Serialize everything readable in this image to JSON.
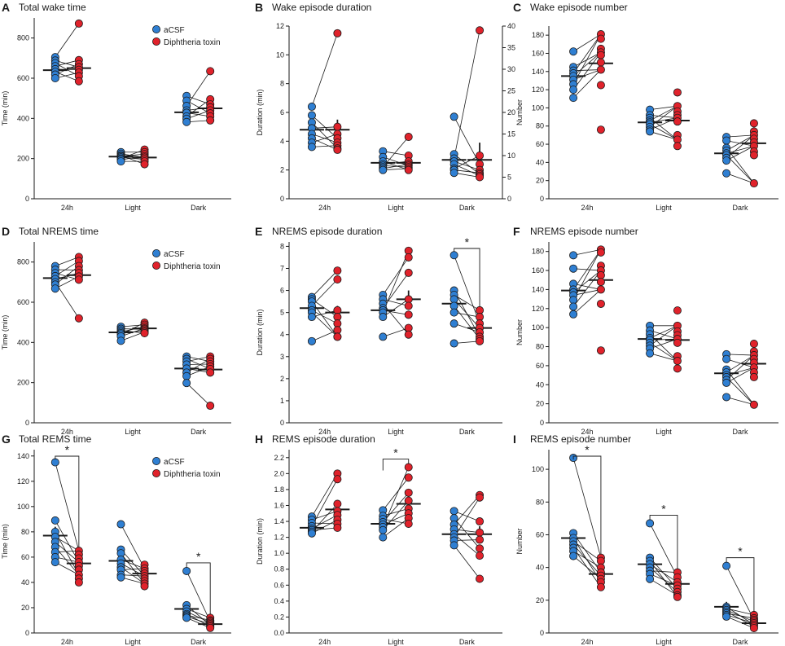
{
  "colors": {
    "acsf": "#2f7fd2",
    "dt": "#e0222b",
    "stroke": "#1a1a1a"
  },
  "legend": {
    "acsf_label": "aCSF",
    "dt_label": "Diphtheria toxin",
    "panels": [
      "A",
      "D",
      "G"
    ]
  },
  "chart_data": [
    {
      "id": "A",
      "letter": "A",
      "title": "Total wake time",
      "type": "scatter",
      "ylabel": "Time (min)",
      "ylim": [
        0,
        900
      ],
      "yticks": [
        0,
        200,
        400,
        600,
        800
      ],
      "categories": [
        "24h",
        "Light",
        "Dark"
      ],
      "series": [
        {
          "name": "aCSF",
          "means": [
            640,
            210,
            430
          ],
          "points": [
            [
              705,
              688,
              675,
              660,
              645,
              632,
              618,
              600
            ],
            [
              232,
              224,
              216,
              212,
              206,
              200,
              194,
              186
            ],
            [
              512,
              488,
              462,
              440,
              428,
              410,
              398,
              382
            ]
          ]
        },
        {
          "name": "Diphtheria toxin",
          "means": [
            650,
            205,
            450
          ],
          "points": [
            [
              872,
              690,
              670,
              655,
              642,
              628,
              610,
              585
            ],
            [
              245,
              232,
              222,
              212,
              205,
              196,
              186,
              172
            ],
            [
              635,
              495,
              470,
              455,
              440,
              425,
              410,
              390
            ]
          ]
        }
      ]
    },
    {
      "id": "B",
      "letter": "B",
      "title": "Wake episode duration",
      "type": "scatter",
      "ylabel": "Duration (min)",
      "ylim": [
        0,
        12
      ],
      "yticks": [
        0,
        2,
        4,
        6,
        8,
        10,
        12
      ],
      "y2lim": [
        0,
        40
      ],
      "y2ticks": [
        0,
        5,
        10,
        15,
        20,
        25,
        30,
        35,
        40
      ],
      "categories": [
        "24h",
        "Light",
        "Dark"
      ],
      "series": [
        {
          "name": "aCSF",
          "means": [
            4.8,
            2.5,
            2.7
          ],
          "sem": [
            0.4,
            0.2,
            0.4
          ],
          "points": [
            [
              6.4,
              5.8,
              5.3,
              4.9,
              4.5,
              4.2,
              3.9,
              3.6
            ],
            [
              3.3,
              2.9,
              2.6,
              2.4,
              2.3,
              2.2,
              2.1,
              2.0
            ],
            [
              5.7,
              3.1,
              2.8,
              2.6,
              2.4,
              2.1,
              2.0,
              1.8
            ]
          ]
        },
        {
          "name": "Diphtheria toxin",
          "means": [
            4.8,
            2.5,
            2.7
          ],
          "sem": [
            0.7,
            0.2,
            1.2
          ],
          "points": [
            [
              11.5,
              5.0,
              4.5,
              4.2,
              3.9,
              3.7,
              3.5,
              3.4
            ],
            [
              4.3,
              3.0,
              2.6,
              2.4,
              2.3,
              2.2,
              2.1,
              2.0
            ],
            [
              11.7,
              3.0,
              2.4,
              2.0,
              1.8,
              1.7,
              1.6,
              1.5
            ]
          ]
        }
      ]
    },
    {
      "id": "C",
      "letter": "C",
      "title": "Wake episode number",
      "type": "scatter",
      "ylabel": "Number",
      "ylim": [
        0,
        190
      ],
      "yticks": [
        0,
        20,
        40,
        60,
        80,
        100,
        120,
        140,
        160,
        180
      ],
      "categories": [
        "24h",
        "Light",
        "Dark"
      ],
      "series": [
        {
          "name": "aCSF",
          "means": [
            135,
            84,
            50
          ],
          "points": [
            [
              162,
              145,
              141,
              138,
              135,
              131,
              126,
              120,
              111
            ],
            [
              98,
              92,
              89,
              86,
              84,
              82,
              79,
              76,
              74
            ],
            [
              68,
              64,
              56,
              53,
              50,
              48,
              45,
              42,
              28
            ]
          ]
        },
        {
          "name": "Diphtheria toxin",
          "means": [
            149,
            86,
            61
          ],
          "points": [
            [
              181,
              176,
              165,
              161,
              158,
              150,
              142,
              125,
              76
            ],
            [
              117,
              102,
              96,
              92,
              89,
              85,
              70,
              65,
              58
            ],
            [
              83,
              74,
              70,
              66,
              62,
              58,
              52,
              48,
              17
            ]
          ]
        }
      ]
    },
    {
      "id": "D",
      "letter": "D",
      "title": "Total NREMS time",
      "type": "scatter",
      "ylabel": "Time (min)",
      "ylim": [
        0,
        900
      ],
      "yticks": [
        0,
        200,
        400,
        600,
        800
      ],
      "categories": [
        "24h",
        "Light",
        "Dark"
      ],
      "series": [
        {
          "name": "aCSF",
          "means": [
            720,
            450,
            270
          ],
          "points": [
            [
              780,
              762,
              745,
              730,
              715,
              700,
              688,
              668
            ],
            [
              478,
              468,
              460,
              452,
              446,
              440,
              430,
              408
            ],
            [
              330,
              318,
              305,
              290,
              270,
              250,
              232,
              198
            ]
          ]
        },
        {
          "name": "Diphtheria toxin",
          "means": [
            735,
            470,
            265
          ],
          "points": [
            [
              825,
              805,
              780,
              760,
              745,
              728,
              712,
              520
            ],
            [
              498,
              488,
              478,
              470,
              465,
              458,
              452,
              446
            ],
            [
              330,
              318,
              305,
              292,
              280,
              268,
              250,
              85
            ]
          ]
        }
      ]
    },
    {
      "id": "E",
      "letter": "E",
      "title": "NREMS episode duration",
      "type": "scatter",
      "ylabel": "Duration (min)",
      "ylim": [
        0,
        8.2
      ],
      "yticks": [
        0,
        1,
        2,
        3,
        4,
        5,
        6,
        7,
        8
      ],
      "categories": [
        "24h",
        "Light",
        "Dark"
      ],
      "series": [
        {
          "name": "aCSF",
          "means": [
            5.2,
            5.1,
            5.4
          ],
          "sem": [
            0.2,
            0.2,
            0.4
          ],
          "points": [
            [
              5.7,
              5.6,
              5.5,
              5.3,
              5.1,
              5.0,
              4.8,
              3.7
            ],
            [
              5.8,
              5.6,
              5.4,
              5.2,
              5.1,
              5.0,
              4.8,
              3.9
            ],
            [
              7.6,
              6.0,
              5.8,
              5.6,
              5.3,
              5.0,
              4.5,
              3.6
            ]
          ]
        },
        {
          "name": "Diphtheria toxin",
          "means": [
            5.0,
            5.6,
            4.3
          ],
          "sem": [
            0.3,
            0.4,
            0.2
          ],
          "points": [
            [
              6.9,
              6.5,
              5.1,
              4.8,
              4.5,
              4.2,
              3.9,
              3.9
            ],
            [
              7.8,
              7.5,
              6.8,
              5.6,
              5.3,
              4.9,
              4.3,
              4.0
            ],
            [
              5.1,
              4.8,
              4.5,
              4.3,
              4.1,
              3.9,
              3.8,
              3.7
            ]
          ]
        }
      ],
      "significance": [
        {
          "category": "Dark",
          "label": "*"
        }
      ]
    },
    {
      "id": "F",
      "letter": "F",
      "title": "NREMS episode number",
      "type": "scatter",
      "ylabel": "Number",
      "ylim": [
        0,
        190
      ],
      "yticks": [
        0,
        20,
        40,
        60,
        80,
        100,
        120,
        140,
        160,
        180
      ],
      "categories": [
        "24h",
        "Light",
        "Dark"
      ],
      "series": [
        {
          "name": "aCSF",
          "means": [
            139,
            88,
            52
          ],
          "points": [
            [
              176,
              162,
              146,
              140,
              137,
              134,
              129,
              122,
              114
            ],
            [
              102,
              97,
              93,
              89,
              87,
              84,
              81,
              78,
              73
            ],
            [
              72,
              67,
              56,
              53,
              50,
              48,
              45,
              42,
              27
            ]
          ]
        },
        {
          "name": "Diphtheria toxin",
          "means": [
            150,
            87,
            62
          ],
          "points": [
            [
              182,
              179,
              165,
              160,
              155,
              148,
              140,
              125,
              76
            ],
            [
              118,
              102,
              96,
              92,
              88,
              84,
              70,
              65,
              57
            ],
            [
              83,
              75,
              71,
              67,
              63,
              58,
              53,
              48,
              19
            ]
          ]
        }
      ]
    },
    {
      "id": "G",
      "letter": "G",
      "title": "Total REMS time",
      "type": "scatter",
      "ylabel": "Time (min)",
      "ylim": [
        0,
        145
      ],
      "yticks": [
        0,
        20,
        40,
        60,
        80,
        100,
        120,
        140
      ],
      "categories": [
        "24h",
        "Light",
        "Dark"
      ],
      "series": [
        {
          "name": "aCSF",
          "means": [
            77,
            57,
            19
          ],
          "sem": [
            7,
            4,
            4
          ],
          "points": [
            [
              135,
              89,
              80,
              76,
              72,
              68,
              64,
              60,
              56
            ],
            [
              86,
              66,
              63,
              58,
              55,
              52,
              50,
              46,
              44
            ],
            [
              49,
              22,
              19,
              17,
              15,
              14,
              13,
              12
            ]
          ]
        },
        {
          "name": "Diphtheria toxin",
          "means": [
            55,
            47,
            7
          ],
          "sem": [
            3,
            2,
            1
          ],
          "points": [
            [
              65,
              62,
              59,
              56,
              53,
              50,
              46,
              43,
              40
            ],
            [
              54,
              51,
              49,
              47,
              45,
              43,
              41,
              39,
              37
            ],
            [
              12,
              10,
              9,
              8,
              7,
              6,
              5,
              4
            ]
          ]
        }
      ],
      "significance": [
        {
          "category": "24h",
          "label": "*"
        },
        {
          "category": "Dark",
          "label": "*"
        }
      ]
    },
    {
      "id": "H",
      "letter": "H",
      "title": "REMS episode duration",
      "type": "scatter",
      "ylabel": "Duration (min)",
      "ylim": [
        0,
        2.3
      ],
      "yticks": [
        0,
        0.2,
        0.4,
        0.6,
        0.8,
        1.0,
        1.2,
        1.4,
        1.6,
        1.8,
        2.0,
        2.2
      ],
      "categories": [
        "24h",
        "Light",
        "Dark"
      ],
      "series": [
        {
          "name": "aCSF",
          "means": [
            1.32,
            1.37,
            1.24
          ],
          "sem": [
            0.03,
            0.04,
            0.05
          ],
          "points": [
            [
              1.46,
              1.42,
              1.38,
              1.34,
              1.31,
              1.29,
              1.27,
              1.25
            ],
            [
              1.54,
              1.47,
              1.43,
              1.39,
              1.36,
              1.33,
              1.29,
              1.2
            ],
            [
              1.53,
              1.44,
              1.36,
              1.3,
              1.24,
              1.2,
              1.16,
              1.1
            ]
          ]
        },
        {
          "name": "Diphtheria toxin",
          "means": [
            1.55,
            1.62,
            1.24
          ],
          "sem": [
            0.07,
            0.07,
            0.1
          ],
          "points": [
            [
              2.0,
              1.93,
              1.62,
              1.53,
              1.48,
              1.42,
              1.37,
              1.32
            ],
            [
              2.08,
              1.95,
              1.76,
              1.66,
              1.56,
              1.5,
              1.44,
              1.37
            ],
            [
              1.73,
              1.7,
              1.4,
              1.26,
              1.17,
              1.06,
              0.97,
              0.68
            ]
          ]
        }
      ],
      "significance": [
        {
          "category": "Light",
          "label": "*"
        }
      ]
    },
    {
      "id": "I",
      "letter": "I",
      "title": "REMS episode number",
      "type": "scatter",
      "ylabel": "Number",
      "ylim": [
        0,
        112
      ],
      "yticks": [
        0,
        20,
        40,
        60,
        80,
        100
      ],
      "categories": [
        "24h",
        "Light",
        "Dark"
      ],
      "series": [
        {
          "name": "aCSF",
          "means": [
            58,
            42,
            16
          ],
          "sem": [
            5,
            3,
            3
          ],
          "points": [
            [
              107,
              61,
              58,
              56,
              54,
              52,
              50,
              47
            ],
            [
              67,
              46,
              44,
              42,
              40,
              38,
              36,
              33
            ],
            [
              41,
              16,
              15,
              14,
              13,
              12,
              11,
              10
            ]
          ]
        },
        {
          "name": "Diphtheria toxin",
          "means": [
            36,
            30,
            6
          ],
          "sem": [
            2,
            2,
            1
          ],
          "points": [
            [
              46,
              44,
              40,
              37,
              35,
              33,
              31,
              28
            ],
            [
              37,
              34,
              31,
              29,
              27,
              25,
              23,
              22
            ],
            [
              11,
              9,
              8,
              7,
              6,
              5,
              4,
              3
            ]
          ]
        }
      ],
      "significance": [
        {
          "category": "24h",
          "label": "*"
        },
        {
          "category": "Light",
          "label": "*"
        },
        {
          "category": "Dark",
          "label": "*"
        }
      ]
    }
  ]
}
